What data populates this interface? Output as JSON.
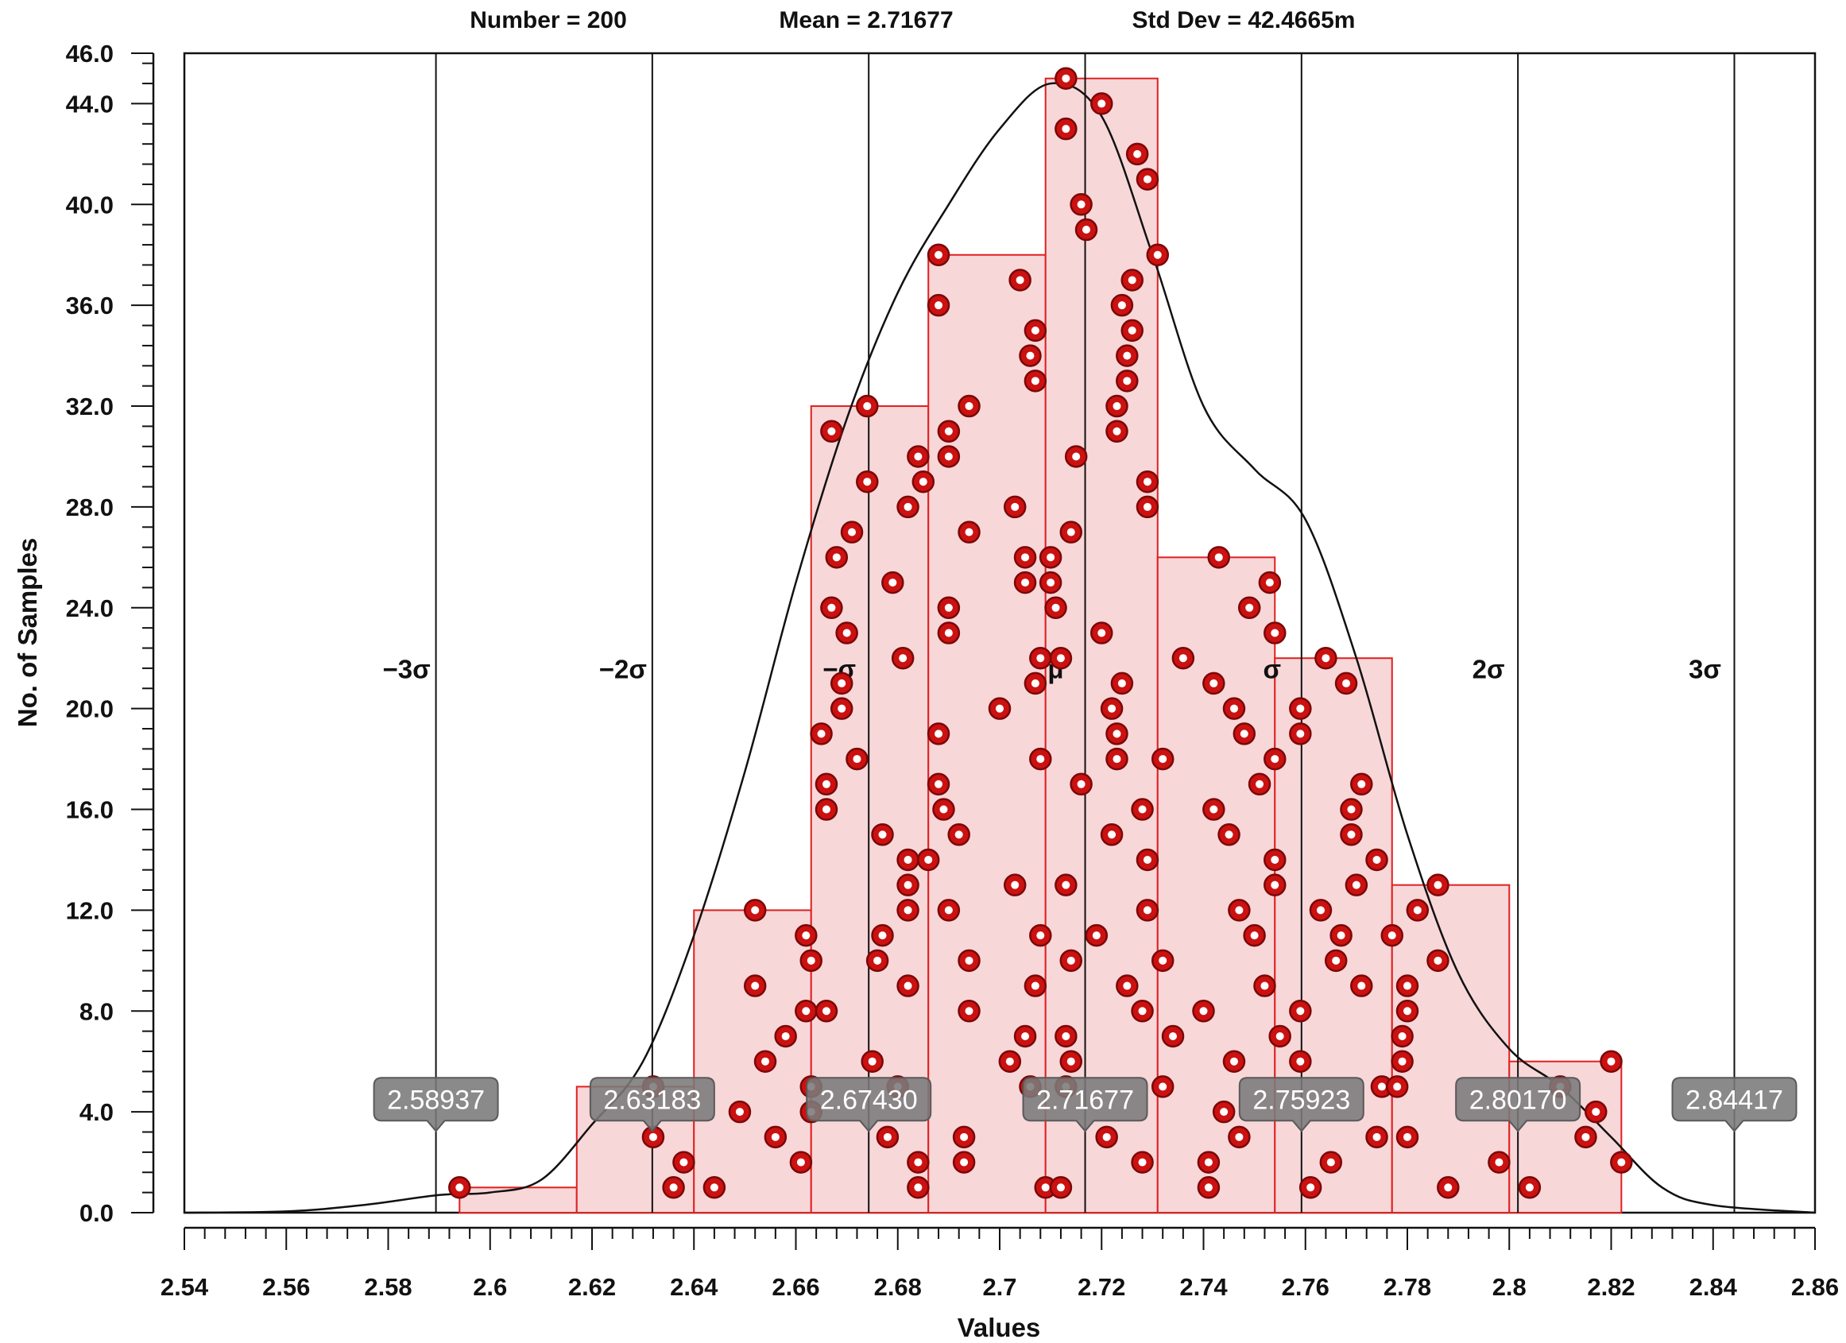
{
  "chart_data": {
    "type": "histogram",
    "stats": {
      "number": "Number = 200",
      "mean": "Mean = 2.71677",
      "std_dev": "Std Dev = 42.4665m"
    },
    "xlabel": "Values",
    "ylabel": "No. of Samples",
    "xlim": [
      2.54,
      2.86
    ],
    "ylim": [
      0,
      46
    ],
    "x_ticks": [
      "2.54",
      "2.56",
      "2.58",
      "2.6",
      "2.62",
      "2.64",
      "2.66",
      "2.68",
      "2.7",
      "2.72",
      "2.74",
      "2.76",
      "2.78",
      "2.8",
      "2.82",
      "2.84",
      "2.86"
    ],
    "y_ticks": [
      "0.0",
      "4.0",
      "8.0",
      "12.0",
      "16.0",
      "20.0",
      "24.0",
      "28.0",
      "32.0",
      "36.0",
      "40.0",
      "44.0",
      "46.0"
    ],
    "bins": [
      {
        "x0": 2.594,
        "x1": 2.617,
        "count": 1
      },
      {
        "x0": 2.617,
        "x1": 2.64,
        "count": 5
      },
      {
        "x0": 2.64,
        "x1": 2.663,
        "count": 12
      },
      {
        "x0": 2.663,
        "x1": 2.686,
        "count": 32
      },
      {
        "x0": 2.686,
        "x1": 2.709,
        "count": 38
      },
      {
        "x0": 2.709,
        "x1": 2.731,
        "count": 45
      },
      {
        "x0": 2.731,
        "x1": 2.754,
        "count": 26
      },
      {
        "x0": 2.754,
        "x1": 2.777,
        "count": 22
      },
      {
        "x0": 2.777,
        "x1": 2.8,
        "count": 13
      },
      {
        "x0": 2.8,
        "x1": 2.822,
        "count": 6
      }
    ],
    "sigma_lines": [
      {
        "label": "−3σ",
        "value": "2.58937"
      },
      {
        "label": "−2σ",
        "value": "2.63183"
      },
      {
        "label": "−σ",
        "value": "2.67430"
      },
      {
        "label": "μ",
        "value": "2.71677"
      },
      {
        "label": "σ",
        "value": "2.75923"
      },
      {
        "label": "2σ",
        "value": "2.80170"
      },
      {
        "label": "3σ",
        "value": "2.84417"
      }
    ],
    "density_curve": [
      [
        2.54,
        0.0
      ],
      [
        2.56,
        0.05
      ],
      [
        2.575,
        0.3
      ],
      [
        2.59,
        0.7
      ],
      [
        2.6,
        0.8
      ],
      [
        2.61,
        1.3
      ],
      [
        2.62,
        3.5
      ],
      [
        2.63,
        6.0
      ],
      [
        2.64,
        11.0
      ],
      [
        2.65,
        17.5
      ],
      [
        2.66,
        25.0
      ],
      [
        2.67,
        31.5
      ],
      [
        2.68,
        36.5
      ],
      [
        2.69,
        40.0
      ],
      [
        2.7,
        43.0
      ],
      [
        2.71,
        44.8
      ],
      [
        2.72,
        43.5
      ],
      [
        2.73,
        38.0
      ],
      [
        2.74,
        32.0
      ],
      [
        2.75,
        29.5
      ],
      [
        2.76,
        27.5
      ],
      [
        2.77,
        22.0
      ],
      [
        2.78,
        15.0
      ],
      [
        2.79,
        9.5
      ],
      [
        2.8,
        6.5
      ],
      [
        2.81,
        5.0
      ],
      [
        2.82,
        3.0
      ],
      [
        2.83,
        1.0
      ],
      [
        2.84,
        0.3
      ],
      [
        2.86,
        0.0
      ]
    ],
    "samples": [
      [
        2.594,
        1
      ],
      [
        2.632,
        5
      ],
      [
        2.632,
        3
      ],
      [
        2.636,
        1
      ],
      [
        2.638,
        2
      ],
      [
        2.644,
        1
      ],
      [
        2.649,
        4
      ],
      [
        2.652,
        12
      ],
      [
        2.652,
        9
      ],
      [
        2.654,
        6
      ],
      [
        2.656,
        3
      ],
      [
        2.658,
        7
      ],
      [
        2.661,
        2
      ],
      [
        2.662,
        8
      ],
      [
        2.662,
        11
      ],
      [
        2.663,
        10
      ],
      [
        2.663,
        5
      ],
      [
        2.663,
        4
      ],
      [
        2.665,
        19
      ],
      [
        2.666,
        17
      ],
      [
        2.666,
        16
      ],
      [
        2.666,
        8
      ],
      [
        2.667,
        31
      ],
      [
        2.667,
        24
      ],
      [
        2.668,
        26
      ],
      [
        2.669,
        21
      ],
      [
        2.669,
        20
      ],
      [
        2.67,
        23
      ],
      [
        2.671,
        27
      ],
      [
        2.672,
        18
      ],
      [
        2.674,
        32
      ],
      [
        2.674,
        29
      ],
      [
        2.675,
        6
      ],
      [
        2.676,
        10
      ],
      [
        2.677,
        15
      ],
      [
        2.677,
        11
      ],
      [
        2.678,
        3
      ],
      [
        2.679,
        25
      ],
      [
        2.68,
        5
      ],
      [
        2.681,
        22
      ],
      [
        2.682,
        14
      ],
      [
        2.682,
        13
      ],
      [
        2.682,
        12
      ],
      [
        2.682,
        9
      ],
      [
        2.682,
        28
      ],
      [
        2.684,
        30
      ],
      [
        2.684,
        2
      ],
      [
        2.684,
        1
      ],
      [
        2.685,
        29
      ],
      [
        2.686,
        14
      ],
      [
        2.688,
        38
      ],
      [
        2.688,
        36
      ],
      [
        2.688,
        19
      ],
      [
        2.688,
        17
      ],
      [
        2.689,
        16
      ],
      [
        2.69,
        31
      ],
      [
        2.69,
        30
      ],
      [
        2.69,
        24
      ],
      [
        2.69,
        23
      ],
      [
        2.69,
        12
      ],
      [
        2.692,
        15
      ],
      [
        2.693,
        2
      ],
      [
        2.693,
        3
      ],
      [
        2.694,
        32
      ],
      [
        2.694,
        27
      ],
      [
        2.694,
        10
      ],
      [
        2.694,
        8
      ],
      [
        2.7,
        20
      ],
      [
        2.702,
        6
      ],
      [
        2.703,
        13
      ],
      [
        2.703,
        28
      ],
      [
        2.704,
        37
      ],
      [
        2.705,
        7
      ],
      [
        2.705,
        26
      ],
      [
        2.705,
        25
      ],
      [
        2.706,
        34
      ],
      [
        2.706,
        5
      ],
      [
        2.707,
        9
      ],
      [
        2.707,
        21
      ],
      [
        2.707,
        33
      ],
      [
        2.707,
        35
      ],
      [
        2.708,
        22
      ],
      [
        2.708,
        11
      ],
      [
        2.708,
        18
      ],
      [
        2.709,
        1
      ],
      [
        2.71,
        25
      ],
      [
        2.71,
        26
      ],
      [
        2.711,
        24
      ],
      [
        2.712,
        22
      ],
      [
        2.712,
        1
      ],
      [
        2.713,
        13
      ],
      [
        2.713,
        7
      ],
      [
        2.713,
        5
      ],
      [
        2.713,
        43
      ],
      [
        2.713,
        45
      ],
      [
        2.714,
        27
      ],
      [
        2.714,
        6
      ],
      [
        2.714,
        10
      ],
      [
        2.715,
        30
      ],
      [
        2.716,
        17
      ],
      [
        2.716,
        40
      ],
      [
        2.717,
        39
      ],
      [
        2.719,
        11
      ],
      [
        2.72,
        44
      ],
      [
        2.72,
        23
      ],
      [
        2.721,
        3
      ],
      [
        2.722,
        15
      ],
      [
        2.722,
        20
      ],
      [
        2.723,
        18
      ],
      [
        2.723,
        19
      ],
      [
        2.723,
        31
      ],
      [
        2.723,
        32
      ],
      [
        2.724,
        36
      ],
      [
        2.724,
        21
      ],
      [
        2.725,
        33
      ],
      [
        2.725,
        34
      ],
      [
        2.725,
        9
      ],
      [
        2.726,
        35
      ],
      [
        2.726,
        37
      ],
      [
        2.727,
        42
      ],
      [
        2.728,
        16
      ],
      [
        2.728,
        8
      ],
      [
        2.728,
        2
      ],
      [
        2.729,
        29
      ],
      [
        2.729,
        28
      ],
      [
        2.729,
        14
      ],
      [
        2.729,
        12
      ],
      [
        2.729,
        41
      ],
      [
        2.731,
        38
      ],
      [
        2.732,
        10
      ],
      [
        2.732,
        5
      ],
      [
        2.732,
        18
      ],
      [
        2.734,
        7
      ],
      [
        2.736,
        22
      ],
      [
        2.74,
        8
      ],
      [
        2.741,
        2
      ],
      [
        2.741,
        1
      ],
      [
        2.742,
        16
      ],
      [
        2.742,
        21
      ],
      [
        2.743,
        26
      ],
      [
        2.744,
        4
      ],
      [
        2.745,
        15
      ],
      [
        2.746,
        6
      ],
      [
        2.746,
        20
      ],
      [
        2.747,
        12
      ],
      [
        2.747,
        3
      ],
      [
        2.748,
        19
      ],
      [
        2.749,
        24
      ],
      [
        2.75,
        11
      ],
      [
        2.751,
        17
      ],
      [
        2.752,
        9
      ],
      [
        2.753,
        25
      ],
      [
        2.754,
        13
      ],
      [
        2.754,
        14
      ],
      [
        2.754,
        23
      ],
      [
        2.754,
        18
      ],
      [
        2.755,
        7
      ],
      [
        2.759,
        6
      ],
      [
        2.759,
        20
      ],
      [
        2.759,
        8
      ],
      [
        2.759,
        19
      ],
      [
        2.761,
        1
      ],
      [
        2.763,
        12
      ],
      [
        2.764,
        22
      ],
      [
        2.765,
        2
      ],
      [
        2.766,
        10
      ],
      [
        2.767,
        11
      ],
      [
        2.768,
        21
      ],
      [
        2.769,
        15
      ],
      [
        2.769,
        16
      ],
      [
        2.77,
        13
      ],
      [
        2.771,
        17
      ],
      [
        2.771,
        9
      ],
      [
        2.774,
        14
      ],
      [
        2.774,
        3
      ],
      [
        2.775,
        5
      ],
      [
        2.777,
        11
      ],
      [
        2.778,
        5
      ],
      [
        2.779,
        6
      ],
      [
        2.779,
        7
      ],
      [
        2.78,
        3
      ],
      [
        2.78,
        8
      ],
      [
        2.78,
        9
      ],
      [
        2.782,
        12
      ],
      [
        2.786,
        13
      ],
      [
        2.786,
        10
      ],
      [
        2.788,
        1
      ],
      [
        2.798,
        2
      ],
      [
        2.804,
        1
      ],
      [
        2.81,
        5
      ],
      [
        2.815,
        3
      ],
      [
        2.817,
        4
      ],
      [
        2.82,
        6
      ],
      [
        2.822,
        2
      ]
    ],
    "colors": {
      "bar_fill": "#f8d7d9",
      "bar_stroke": "#e02020",
      "marker_fill": "#cc1111",
      "marker_stroke": "#7a0808",
      "callout_fill": "#7a7a7a"
    }
  }
}
